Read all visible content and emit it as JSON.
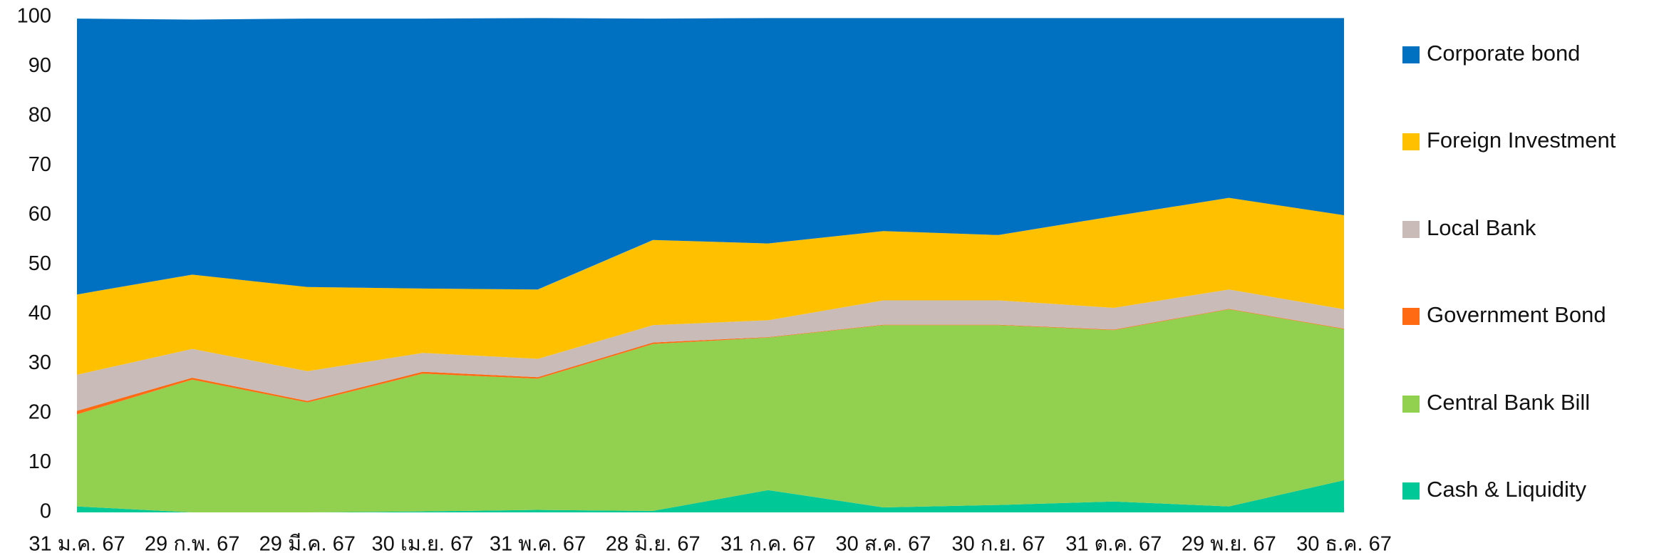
{
  "chart_data": {
    "type": "stacked_area",
    "categories": [
      "31 ม.ค. 67",
      "29 ก.พ. 67",
      "29 มี.ค. 67",
      "30 เม.ย. 67",
      "31 พ.ค. 67",
      "28 มิ.ย. 67",
      "31 ก.ค. 67",
      "30 ส.ค. 67",
      "30 ก.ย. 67",
      "31 ต.ค. 67",
      "29 พ.ย. 67",
      "30 ธ.ค. 67"
    ],
    "series": [
      {
        "name": "Cash & Liquidity",
        "color": "#00c896",
        "values": [
          1.2,
          0,
          0,
          0.2,
          0.5,
          0.3,
          4.5,
          1,
          1.5,
          2.2,
          1.2,
          6.5
        ]
      },
      {
        "name": "Central Bank Bill",
        "color": "#92d050",
        "values": [
          18.6,
          26.8,
          22.2,
          27.8,
          26.5,
          33.7,
          30.8,
          36.8,
          36.3,
          34.6,
          39.8,
          30.5
        ]
      },
      {
        "name": "Government Bond",
        "color": "#ff6a13",
        "values": [
          0.7,
          0.4,
          0.3,
          0.4,
          0.3,
          0.3,
          0.1,
          0.1,
          0.1,
          0.1,
          0.1,
          0.1
        ]
      },
      {
        "name": "Local Bank",
        "color": "#c9bcb8",
        "values": [
          7.3,
          5.8,
          6,
          3.8,
          3.7,
          3.5,
          3.4,
          4.9,
          4.9,
          4.4,
          3.9,
          3.9
        ]
      },
      {
        "name": "Foreign Investment",
        "color": "#ffc000",
        "values": [
          16.2,
          15,
          17,
          13,
          14,
          17.2,
          15.5,
          14,
          13.2,
          18.5,
          18.5,
          19
        ]
      },
      {
        "name": "Corporate bond",
        "color": "#0070c0",
        "values": [
          55.7,
          51.5,
          54.2,
          54.5,
          54.8,
          44.7,
          45.5,
          43,
          43.8,
          40,
          36.3,
          39.8
        ]
      }
    ],
    "ylim": [
      0,
      100
    ],
    "yticks": [
      0,
      10,
      20,
      30,
      40,
      50,
      60,
      70,
      80,
      90,
      100
    ]
  }
}
